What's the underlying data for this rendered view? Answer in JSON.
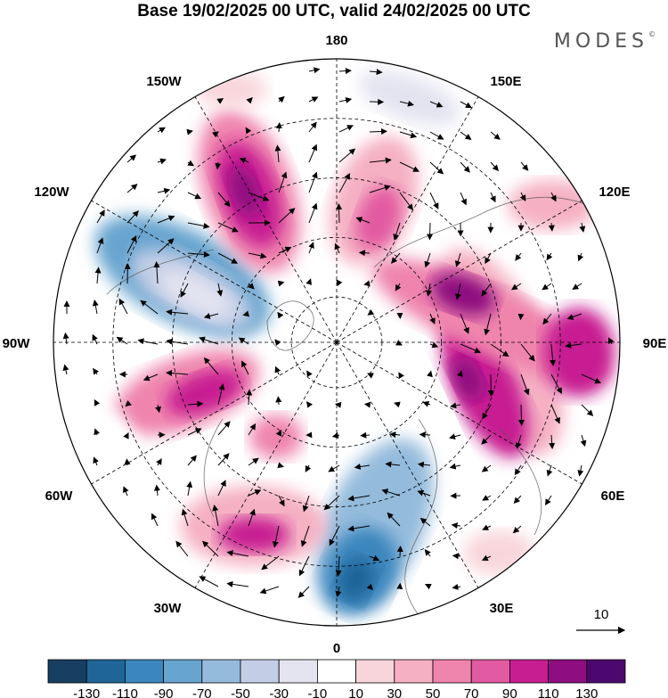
{
  "title": "Base 19/02/2025 00 UTC, valid 24/02/2025 00 UTC",
  "brand": "MODES",
  "longitude_labels": [
    "180",
    "150E",
    "120E",
    "90E",
    "60E",
    "30E",
    "0",
    "30W",
    "60W",
    "90W",
    "120W",
    "150W"
  ],
  "reference_vector": "10",
  "colorbar": {
    "ticks": [
      "-130",
      "-110",
      "-90",
      "-70",
      "-50",
      "-30",
      "-10",
      "10",
      "30",
      "50",
      "70",
      "90",
      "110",
      "130"
    ],
    "colors": [
      "#173f62",
      "#1f6598",
      "#3a86bd",
      "#67a4cf",
      "#94bbdc",
      "#c3cee6",
      "#e4e4f1",
      "#ffffff",
      "#f8d5db",
      "#f5b0c3",
      "#ef84ad",
      "#e25aa1",
      "#c71e92",
      "#8e0d80",
      "#4c086e"
    ]
  },
  "map": {
    "projection": "north polar stereographic",
    "field": "anomaly shading with wind vectors"
  }
}
